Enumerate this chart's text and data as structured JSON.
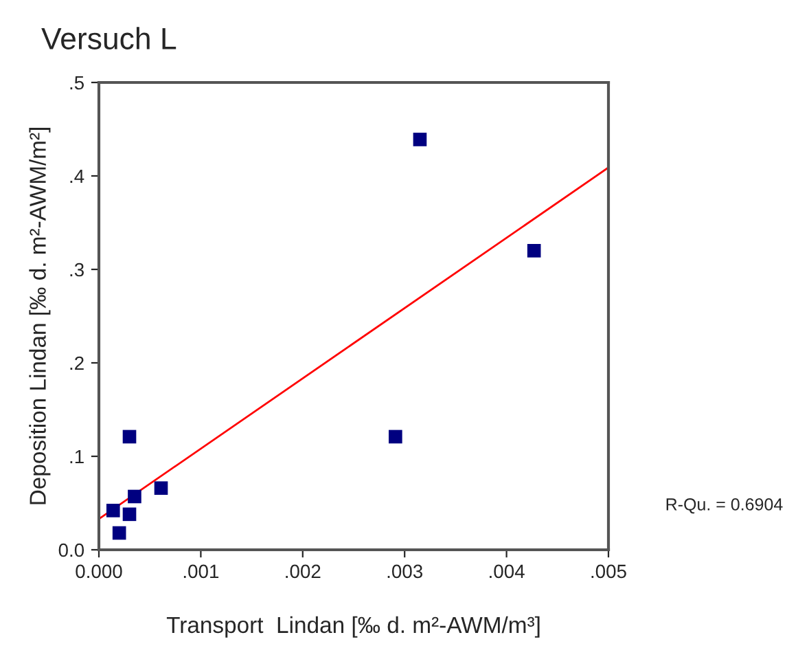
{
  "chart_data": {
    "type": "scatter",
    "title": "Versuch L",
    "xlabel": "Transport  Lindan [‰ d. m²-AWM/m³]",
    "ylabel": "Deposition Lindan [‰ d. m²-AWM/m²]",
    "series": [
      {
        "color": "#000080",
        "marker": "square",
        "x": [
          0.00315,
          0.00427,
          0.00291,
          0.0003,
          0.00061,
          0.00035,
          0.00014,
          0.0003,
          0.0002
        ],
        "values": [
          0.439,
          0.32,
          0.121,
          0.121,
          0.066,
          0.057,
          0.042,
          0.038,
          0.018
        ]
      },
      {
        "type": "line",
        "color": "#ff0000",
        "marker": "none",
        "line_style": "solid",
        "x": [
          0,
          0.005
        ],
        "values": [
          0.033,
          0.409
        ]
      }
    ],
    "xlim": [
      0,
      0.005
    ],
    "ylim": [
      0,
      0.5
    ],
    "xticks": [
      {
        "value": 0,
        "label": "0.000"
      },
      {
        "value": 0.001,
        "label": ".001"
      },
      {
        "value": 0.002,
        "label": ".002"
      },
      {
        "value": 0.003,
        "label": ".003"
      },
      {
        "value": 0.004,
        "label": ".004"
      },
      {
        "value": 0.005,
        "label": ".005"
      }
    ],
    "yticks": [
      {
        "value": 0,
        "label": "0.0"
      },
      {
        "value": 0.1,
        "label": ".1"
      },
      {
        "value": 0.2,
        "label": ".2"
      },
      {
        "value": 0.3,
        "label": ".3"
      },
      {
        "value": 0.4,
        "label": ".4"
      },
      {
        "value": 0.5,
        "label": ".5"
      }
    ],
    "annotations": [
      "R-Qu. = 0.6904"
    ],
    "grid": false,
    "legend": false
  }
}
